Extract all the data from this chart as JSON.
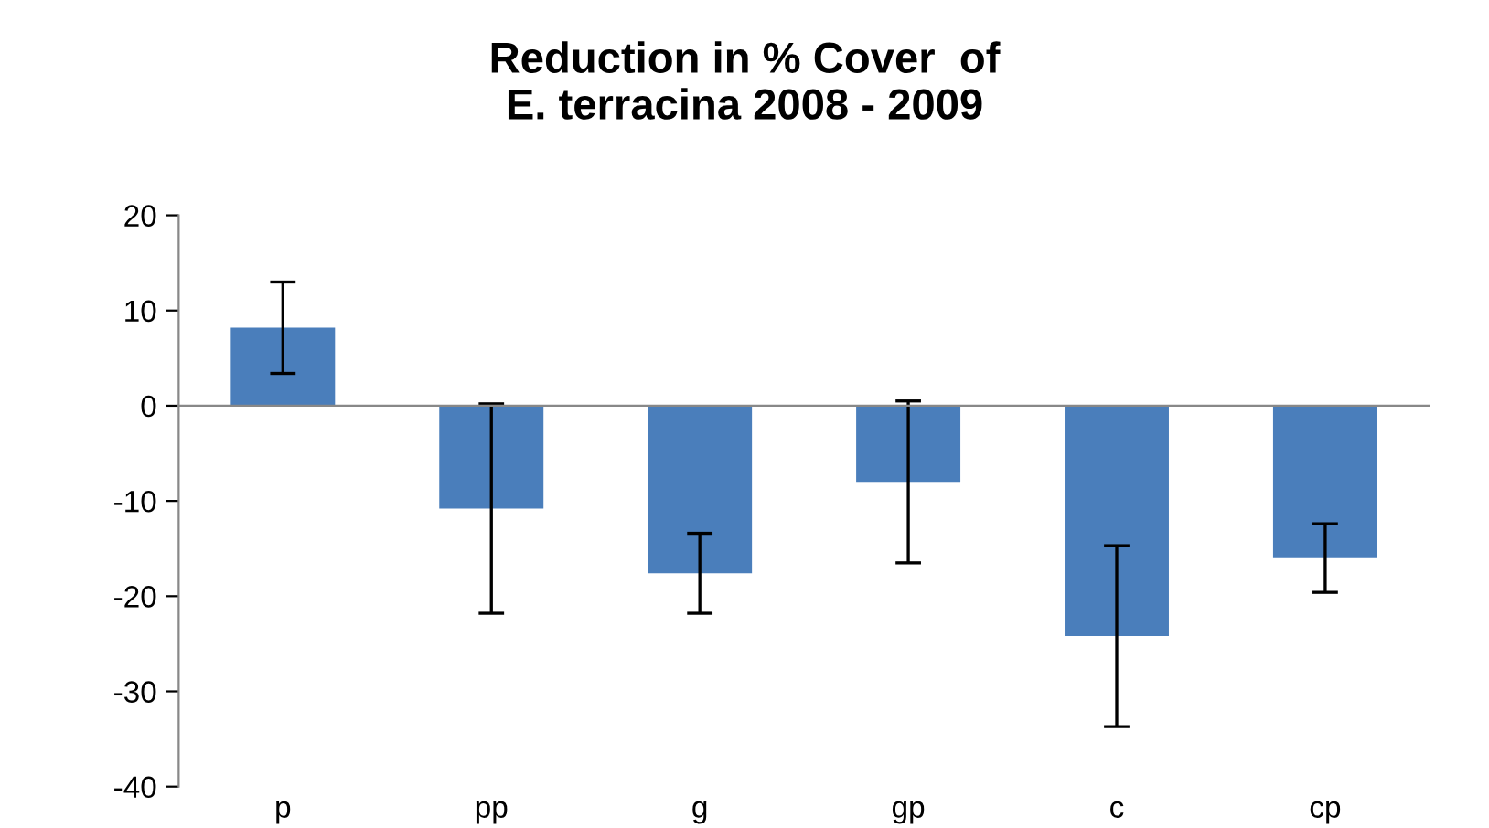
{
  "chart_data": {
    "type": "bar",
    "title": "Reduction in % Cover  of\nE. terracina 2008 - 2009",
    "categories": [
      "p",
      "pp",
      "g",
      "gp",
      "c",
      "cp"
    ],
    "values": [
      8.2,
      -10.8,
      -17.6,
      -8,
      -24.2,
      -16
    ],
    "errors": [
      4.8,
      11,
      4.2,
      8.5,
      9.5,
      3.6
    ],
    "color": "#4a7ebb",
    "ylim": [
      -40,
      20
    ],
    "yticks": [
      -40,
      -30,
      -20,
      -10,
      0,
      10,
      20
    ],
    "legend": false
  }
}
